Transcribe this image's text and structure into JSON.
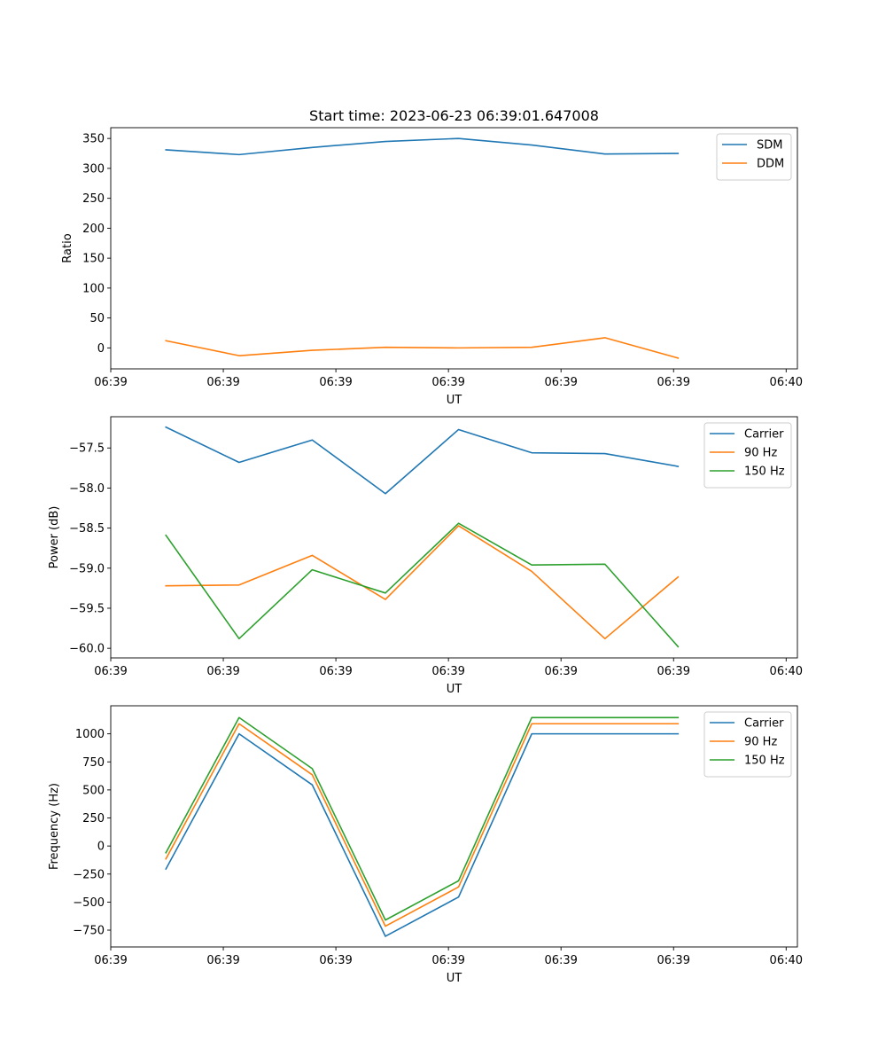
{
  "figure": {
    "title": "Start time: 2023-06-23 06:39:01.647008"
  },
  "colors": {
    "blue": "#1f77b4",
    "orange": "#ff7f0e",
    "green": "#2ca02c"
  },
  "chart_data": [
    {
      "type": "line",
      "title": "Start time: 2023-06-23 06:39:01.647008",
      "xlabel": "UT",
      "ylabel": "Ratio",
      "xlim": [
        0,
        6.1
      ],
      "x_ticks": [
        0,
        1,
        2,
        3,
        4,
        5,
        6
      ],
      "x_tick_labels": [
        "06:39",
        "06:39",
        "06:39",
        "06:39",
        "06:39",
        "06:39",
        "06:40"
      ],
      "ylim": [
        -35,
        368
      ],
      "y_ticks": [
        0,
        50,
        100,
        150,
        200,
        250,
        300,
        350
      ],
      "y_tick_labels": [
        "0",
        "50",
        "100",
        "150",
        "200",
        "250",
        "300",
        "350"
      ],
      "x": [
        0.49,
        1.14,
        1.79,
        2.44,
        3.09,
        3.74,
        4.39,
        5.04
      ],
      "legend_position": "upper right",
      "grid": false,
      "series": [
        {
          "name": "SDM",
          "color": "#1f77b4",
          "values": [
            331,
            323,
            335,
            345,
            350,
            339,
            324,
            325
          ]
        },
        {
          "name": "DDM",
          "color": "#ff7f0e",
          "values": [
            12,
            -13,
            -4,
            1,
            0,
            1,
            17,
            -17
          ]
        }
      ]
    },
    {
      "type": "line",
      "title": "",
      "xlabel": "UT",
      "ylabel": "Power (dB)",
      "xlim": [
        0,
        6.1
      ],
      "x_ticks": [
        0,
        1,
        2,
        3,
        4,
        5,
        6
      ],
      "x_tick_labels": [
        "06:39",
        "06:39",
        "06:39",
        "06:39",
        "06:39",
        "06:39",
        "06:40"
      ],
      "ylim": [
        -60.12,
        -57.11
      ],
      "y_ticks": [
        -60.0,
        -59.5,
        -59.0,
        -58.5,
        -58.0,
        -57.5
      ],
      "y_tick_labels": [
        "−60.0",
        "−59.5",
        "−59.0",
        "−58.5",
        "−58.0",
        "−57.5"
      ],
      "x": [
        0.49,
        1.14,
        1.79,
        2.44,
        3.09,
        3.74,
        4.39,
        5.04
      ],
      "legend_position": "upper right",
      "grid": false,
      "series": [
        {
          "name": "Carrier",
          "color": "#1f77b4",
          "values": [
            -57.24,
            -57.68,
            -57.4,
            -58.07,
            -57.27,
            -57.56,
            -57.57,
            -57.73
          ]
        },
        {
          "name": "90 Hz",
          "color": "#ff7f0e",
          "values": [
            -59.22,
            -59.21,
            -58.84,
            -59.39,
            -58.47,
            -59.04,
            -59.88,
            -59.11
          ]
        },
        {
          "name": "150 Hz",
          "color": "#2ca02c",
          "values": [
            -58.59,
            -59.88,
            -59.02,
            -59.31,
            -58.44,
            -58.96,
            -58.95,
            -59.98
          ]
        }
      ]
    },
    {
      "type": "line",
      "title": "",
      "xlabel": "UT",
      "ylabel": "Frequency (Hz)",
      "xlim": [
        0,
        6.1
      ],
      "x_ticks": [
        0,
        1,
        2,
        3,
        4,
        5,
        6
      ],
      "x_tick_labels": [
        "06:39",
        "06:39",
        "06:39",
        "06:39",
        "06:39",
        "06:39",
        "06:40"
      ],
      "ylim": [
        -900,
        1250
      ],
      "y_ticks": [
        -750,
        -500,
        -250,
        0,
        250,
        500,
        750,
        1000
      ],
      "y_tick_labels": [
        "−750",
        "−500",
        "−250",
        "0",
        "250",
        "500",
        "750",
        "1000"
      ],
      "x": [
        0.49,
        1.14,
        1.79,
        2.44,
        3.09,
        3.74,
        4.39,
        5.04
      ],
      "legend_position": "upper right",
      "grid": false,
      "series": [
        {
          "name": "Carrier",
          "color": "#1f77b4",
          "values": [
            -205,
            1000,
            545,
            -805,
            -455,
            1000,
            1000,
            1000
          ]
        },
        {
          "name": "90 Hz",
          "color": "#ff7f0e",
          "values": [
            -115,
            1090,
            635,
            -715,
            -365,
            1090,
            1090,
            1090
          ]
        },
        {
          "name": "150 Hz",
          "color": "#2ca02c",
          "values": [
            -60,
            1145,
            690,
            -660,
            -310,
            1145,
            1145,
            1145
          ]
        }
      ]
    }
  ]
}
